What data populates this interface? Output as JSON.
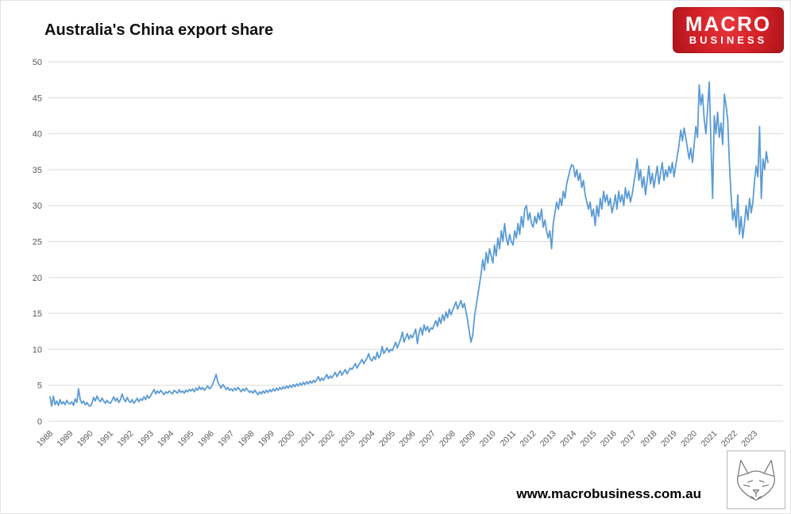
{
  "header": {
    "title": "Australia's China export share"
  },
  "logo": {
    "line1": "MACRO",
    "line2": "BUSINESS",
    "bg_color": "#d21f26",
    "text_color": "#ffffff"
  },
  "footer": {
    "website": "www.macrobusiness.com.au"
  },
  "watermark": {
    "name": "macrobusiness-wolf-sketch"
  },
  "chart_data": {
    "type": "line",
    "title": "Australia's China export share",
    "unit": "percent",
    "x_start_year": 1988,
    "frequency": "monthly",
    "years": [
      "1988",
      "1989",
      "1990",
      "1991",
      "1992",
      "1993",
      "1994",
      "1995",
      "1996",
      "1997",
      "1998",
      "1999",
      "2000",
      "2001",
      "2002",
      "2003",
      "2004",
      "2005",
      "2006",
      "2007",
      "2008",
      "2009",
      "2010",
      "2011",
      "2012",
      "2013",
      "2014",
      "2015",
      "2016",
      "2017",
      "2018",
      "2019",
      "2020",
      "2021",
      "2022",
      "2023"
    ],
    "ylim": [
      0,
      50
    ],
    "ytick_step": 5,
    "grid": true,
    "legend": "none",
    "line_color": "#5B9BD5",
    "grid_color": "#d9d9d9",
    "axis_text_color": "#595959",
    "values": [
      3.4,
      2.1,
      3.5,
      2.3,
      2.8,
      2.2,
      3.0,
      2.4,
      2.7,
      2.3,
      2.9,
      2.5,
      2.4,
      2.7,
      2.2,
      3.1,
      2.6,
      4.5,
      3.0,
      2.5,
      2.8,
      2.3,
      2.6,
      2.2,
      2.1,
      2.5,
      3.3,
      2.8,
      3.5,
      3.0,
      2.7,
      3.2,
      2.8,
      2.5,
      2.9,
      2.6,
      2.5,
      2.9,
      3.4,
      2.8,
      3.2,
      2.6,
      3.0,
      3.8,
      3.1,
      2.7,
      3.3,
      2.8,
      2.6,
      3.0,
      2.5,
      2.8,
      3.2,
      2.7,
      3.1,
      2.9,
      3.4,
      3.0,
      3.6,
      3.2,
      3.5,
      4.0,
      4.4,
      3.8,
      4.2,
      3.9,
      4.3,
      4.0,
      3.7,
      4.1,
      3.9,
      4.2,
      4.0,
      3.8,
      4.3,
      4.1,
      3.9,
      4.4,
      4.0,
      4.2,
      3.9,
      4.3,
      4.1,
      4.4,
      4.2,
      4.5,
      4.1,
      4.6,
      4.3,
      4.8,
      4.4,
      4.7,
      4.3,
      4.6,
      4.9,
      4.5,
      4.7,
      5.2,
      5.8,
      6.5,
      5.5,
      5.0,
      4.6,
      5.1,
      4.8,
      4.4,
      4.7,
      4.3,
      4.5,
      4.2,
      4.6,
      4.3,
      4.7,
      4.4,
      4.1,
      4.5,
      4.2,
      4.6,
      4.3,
      4.0,
      4.2,
      3.9,
      4.3,
      4.0,
      3.7,
      4.1,
      3.8,
      4.2,
      3.9,
      4.3,
      4.0,
      4.4,
      4.1,
      4.5,
      4.2,
      4.6,
      4.3,
      4.7,
      4.4,
      4.8,
      4.5,
      4.9,
      4.6,
      5.0,
      4.7,
      5.1,
      4.8,
      5.2,
      4.9,
      5.3,
      5.0,
      5.4,
      5.1,
      5.5,
      5.2,
      5.6,
      5.3,
      5.7,
      5.4,
      5.8,
      6.2,
      5.6,
      6.0,
      5.7,
      6.1,
      6.5,
      5.9,
      6.3,
      6.0,
      6.4,
      6.8,
      6.2,
      6.6,
      7.0,
      6.4,
      6.8,
      7.2,
      6.6,
      7.0,
      7.4,
      7.2,
      7.6,
      8.0,
      7.4,
      7.8,
      8.2,
      8.6,
      8.0,
      8.4,
      8.8,
      9.4,
      8.6,
      8.4,
      9.0,
      8.6,
      9.6,
      8.8,
      9.2,
      10.4,
      9.4,
      9.8,
      10.2,
      9.6,
      10.0,
      9.8,
      10.4,
      11.0,
      10.2,
      10.8,
      11.4,
      12.4,
      11.0,
      11.6,
      12.2,
      11.4,
      12.0,
      11.6,
      12.2,
      12.8,
      10.8,
      12.4,
      13.0,
      12.0,
      13.4,
      12.6,
      13.2,
      12.4,
      13.0,
      12.8,
      13.4,
      14.0,
      13.2,
      14.4,
      13.6,
      14.8,
      14.0,
      15.2,
      14.4,
      15.6,
      14.8,
      15.4,
      16.0,
      16.6,
      15.6,
      16.2,
      16.8,
      15.8,
      16.4,
      15.2,
      14.0,
      12.4,
      11.0,
      12.0,
      14.5,
      16.0,
      17.5,
      19.0,
      20.5,
      22.5,
      21.0,
      23.5,
      22.0,
      24.0,
      23.0,
      22.0,
      24.5,
      23.0,
      25.5,
      24.0,
      26.5,
      25.0,
      27.5,
      25.5,
      24.5,
      26.0,
      25.0,
      24.5,
      26.5,
      25.5,
      27.5,
      26.0,
      28.5,
      27.0,
      29.5,
      30.0,
      28.0,
      29.0,
      27.5,
      27.0,
      28.5,
      27.5,
      29.0,
      28.0,
      29.5,
      27.0,
      28.0,
      26.5,
      25.5,
      26.5,
      24.0,
      27.5,
      29.0,
      30.5,
      29.5,
      31.0,
      30.0,
      32.0,
      31.0,
      33.0,
      34.0,
      35.0,
      35.7,
      35.5,
      34.0,
      35.0,
      33.5,
      34.5,
      32.5,
      33.5,
      31.5,
      30.5,
      29.5,
      30.5,
      28.5,
      29.5,
      27.2,
      30.0,
      28.5,
      31.0,
      29.5,
      32.0,
      30.5,
      31.5,
      30.0,
      31.0,
      29.0,
      30.0,
      31.5,
      29.5,
      32.0,
      30.5,
      31.5,
      30.0,
      32.5,
      31.0,
      32.0,
      30.5,
      31.5,
      33.0,
      34.5,
      36.5,
      33.5,
      35.0,
      32.5,
      34.0,
      31.5,
      33.5,
      35.5,
      33.0,
      34.5,
      32.5,
      34.0,
      35.5,
      33.0,
      34.5,
      36.0,
      33.5,
      35.0,
      34.0,
      35.5,
      34.5,
      36.0,
      34.0,
      35.5,
      37.0,
      38.5,
      40.5,
      39.0,
      40.8,
      39.5,
      38.0,
      36.5,
      38.0,
      36.0,
      38.5,
      41.0,
      39.5,
      46.8,
      44.0,
      45.5,
      42.0,
      40.0,
      43.5,
      47.2,
      38.5,
      31.0,
      42.5,
      40.0,
      43.0,
      39.5,
      41.5,
      38.5,
      45.5,
      44.0,
      42.0,
      36.0,
      31.5,
      28.0,
      29.5,
      27.0,
      31.5,
      26.0,
      28.5,
      25.5,
      27.5,
      30.0,
      28.0,
      31.0,
      29.0,
      30.5,
      33.5,
      35.5,
      34.0,
      41.0,
      31.0,
      36.5,
      35.0,
      37.5,
      36.0
    ]
  }
}
